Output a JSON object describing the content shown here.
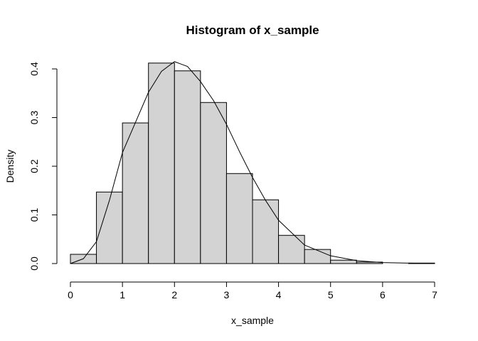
{
  "chart_data": {
    "type": "histogram",
    "title": "Histogram of x_sample",
    "x_label": "x_sample",
    "y_label": "Density",
    "bins": [
      0,
      0.5,
      1,
      1.5,
      2,
      2.5,
      3,
      3.5,
      4,
      4.5,
      5,
      5.5,
      6,
      6.5,
      7
    ],
    "values": [
      0.019,
      0.147,
      0.289,
      0.412,
      0.396,
      0.331,
      0.185,
      0.131,
      0.058,
      0.029,
      0.007,
      0.003,
      0,
      0.001
    ],
    "color": "#d3d3d3",
    "curve": {
      "x": [
        0,
        0.25,
        0.5,
        0.75,
        1,
        1.25,
        1.5,
        1.75,
        2,
        2.25,
        2.5,
        2.75,
        3,
        3.25,
        3.5,
        3.75,
        4,
        4.5,
        5,
        5.5,
        6,
        6.5,
        7
      ],
      "values": [
        0,
        0.01,
        0.045,
        0.13,
        0.228,
        0.29,
        0.352,
        0.395,
        0.415,
        0.405,
        0.374,
        0.335,
        0.286,
        0.23,
        0.177,
        0.13,
        0.089,
        0.038,
        0.016,
        0.006,
        0.002,
        0.001,
        0
      ],
      "color": "#000000"
    },
    "xlim": [
      0,
      7
    ],
    "xticks": [
      0,
      1,
      2,
      3,
      4,
      5,
      6,
      7
    ],
    "ylim": [
      0,
      0.4
    ],
    "yticks": [
      {
        "value": 0,
        "label": "0.0"
      },
      0.1,
      0.2,
      0.3,
      0.4
    ]
  }
}
